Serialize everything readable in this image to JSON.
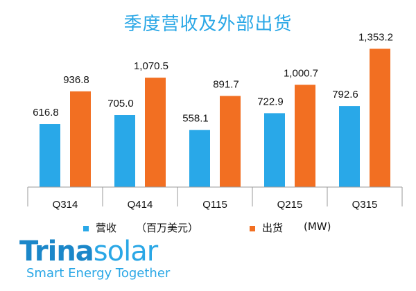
{
  "page": {
    "title": "季度营收及外部出货"
  },
  "legend": {
    "revenue_label": "营收",
    "revenue_unit": "（百万美元）",
    "shipment_label": "出货",
    "shipment_unit": "(MW)"
  },
  "logo": {
    "brand_main": "Trina",
    "brand_solar": "solar",
    "tagline": "Smart Energy Together"
  },
  "colors": {
    "revenue": "#29a8e8",
    "shipment": "#f26f22",
    "title": "#2aa7e6"
  },
  "chart_data": {
    "type": "bar",
    "title": "季度营收及外部出货",
    "xlabel": "",
    "ylabel": "",
    "categories": [
      "Q314",
      "Q414",
      "Q115",
      "Q215",
      "Q315"
    ],
    "series": [
      {
        "name": "营收",
        "values": [
          616.8,
          705.0,
          558.1,
          722.9,
          792.6
        ],
        "labels": [
          "616.8",
          "705.0",
          "558.1",
          "722.9",
          "792.6"
        ]
      },
      {
        "name": "出货",
        "values": [
          936.8,
          1070.5,
          891.7,
          1000.7,
          1353.2
        ],
        "labels": [
          "936.8",
          "1,070.5",
          "891.7",
          "1,000.7",
          "1,353.2"
        ]
      }
    ],
    "ylim": [
      0,
      1400
    ],
    "grid": false,
    "legend_position": "bottom-left"
  }
}
